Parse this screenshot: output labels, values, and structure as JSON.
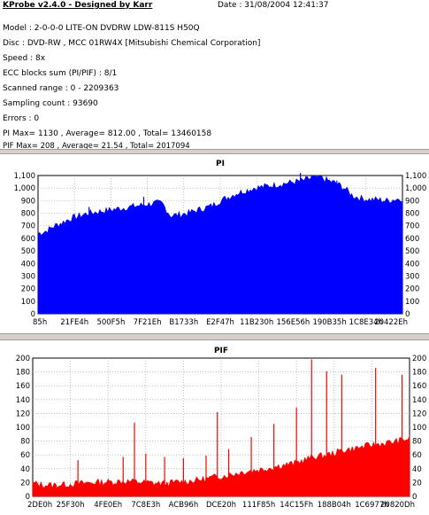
{
  "header": {
    "app_title": "KProbe v2.4.0 - Designed by Karr",
    "date": "Date : 31/08/2004 12:41:37",
    "lines": [
      "Model : 2-0-0-0 LITE-ON DVDRW LDW-811S   H50Q",
      "Disc : DVD-RW , MCC 01RW4X  [Mitsubishi Chemical Corporation]",
      "Speed : 8x",
      "ECC blocks sum (PI/PIF) : 8/1",
      "Scanned range : 0 - 2209363",
      "Sampling count : 93690",
      "Errors : 0",
      "PI Max= 1130 , Average= 812.00 , Total= 13460158",
      "PIF Max= 208 , Average= 21.54 , Total= 2017094"
    ]
  },
  "colors": {
    "pi": "#0000ff",
    "pif": "#ff0000",
    "grid": "#9a9a9a"
  },
  "chart_data": [
    {
      "type": "area",
      "title": "PI",
      "ylim": [
        0,
        1100
      ],
      "yticks": [
        0,
        100,
        200,
        300,
        400,
        500,
        600,
        700,
        800,
        900,
        "1,000",
        "1,100"
      ],
      "xticks": [
        "85h",
        "21FE4h",
        "500F5h",
        "7F21Eh",
        "B1733h",
        "E2F47h",
        "11B230h",
        "156E56h",
        "190B35h",
        "1C8E34h",
        "20422Eh"
      ],
      "max": 1130,
      "average": 812.0,
      "total": 13460158,
      "series": [
        {
          "values": [
            640,
            660,
            700,
            730,
            760,
            780,
            800,
            810,
            820,
            830,
            840,
            850,
            860,
            870,
            880,
            880,
            780,
            790,
            800,
            820,
            840,
            860,
            900,
            930,
            960,
            980,
            1000,
            1010,
            1020,
            1030,
            1040,
            1050,
            1060,
            1080,
            1090,
            1060,
            1040,
            1000,
            940,
            920,
            910,
            910,
            900,
            910,
            920
          ],
          "spikes": [
            {
              "pos": 0.14,
              "value": 850
            },
            {
              "pos": 0.29,
              "value": 930
            },
            {
              "pos": 0.72,
              "value": 1120
            },
            {
              "pos": 0.75,
              "value": 1100
            },
            {
              "pos": 0.77,
              "value": 1080
            },
            {
              "pos": 0.79,
              "value": 1060
            },
            {
              "pos": 0.82,
              "value": 1060
            }
          ]
        }
      ]
    },
    {
      "type": "area",
      "title": "PIF",
      "ylim": [
        0,
        210
      ],
      "yticks": [
        0,
        20,
        40,
        60,
        80,
        100,
        120,
        140,
        160,
        180,
        200
      ],
      "xticks": [
        "2DE0h",
        "25F30h",
        "4FE0Eh",
        "7C8E3h",
        "ACB96h",
        "DCE20h",
        "111F85h",
        "14C15Fh",
        "188B04h",
        "1C6977h",
        "20820Dh"
      ],
      "max": 208,
      "average": 21.54,
      "total": 2017094,
      "series": [
        {
          "values": [
            20,
            18,
            17,
            18,
            19,
            20,
            21,
            22,
            22,
            23,
            23,
            22,
            21,
            20,
            20,
            22,
            23,
            25,
            27,
            30,
            32,
            35,
            38,
            40,
            42,
            45,
            48,
            50,
            55,
            60,
            62,
            65,
            70,
            72,
            75,
            78,
            80,
            82,
            85,
            88
          ],
          "spikes": [
            {
              "pos": 0.12,
              "value": 55
            },
            {
              "pos": 0.24,
              "value": 60
            },
            {
              "pos": 0.27,
              "value": 112
            },
            {
              "pos": 0.3,
              "value": 65
            },
            {
              "pos": 0.35,
              "value": 60
            },
            {
              "pos": 0.4,
              "value": 58
            },
            {
              "pos": 0.46,
              "value": 62
            },
            {
              "pos": 0.49,
              "value": 128
            },
            {
              "pos": 0.52,
              "value": 72
            },
            {
              "pos": 0.58,
              "value": 90
            },
            {
              "pos": 0.64,
              "value": 110
            },
            {
              "pos": 0.7,
              "value": 135
            },
            {
              "pos": 0.74,
              "value": 208
            },
            {
              "pos": 0.78,
              "value": 190
            },
            {
              "pos": 0.82,
              "value": 185
            },
            {
              "pos": 0.91,
              "value": 195
            },
            {
              "pos": 0.98,
              "value": 185
            }
          ]
        }
      ]
    }
  ]
}
